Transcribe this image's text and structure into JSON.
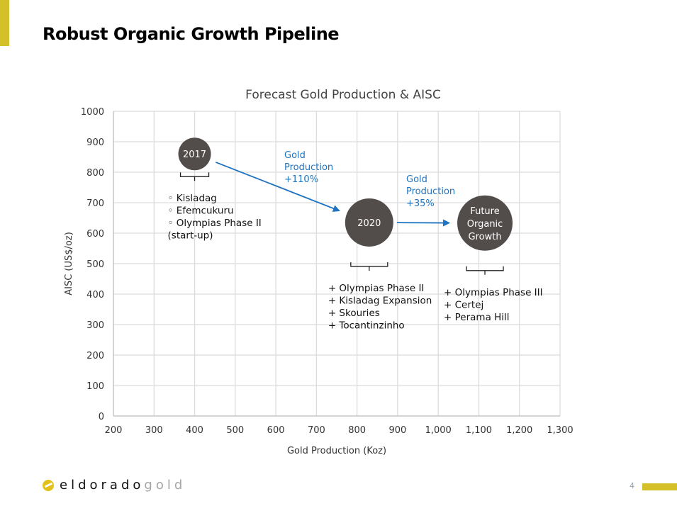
{
  "slide": {
    "title": "Robust Organic Growth Pipeline",
    "page_number": "4",
    "logo": {
      "dark": "eldorado",
      "light": "gold",
      "icon": "eldorado-logo-icon"
    },
    "accent_color": "#d4c12a"
  },
  "chart_data": {
    "type": "scatter",
    "title": "Forecast Gold Production & AISC",
    "xlabel": "Gold Production (Koz)",
    "ylabel": "AISC (US$/oz)",
    "xlim": [
      200,
      1300
    ],
    "ylim": [
      0,
      1000
    ],
    "x_ticks": [
      200,
      300,
      400,
      500,
      600,
      700,
      800,
      900,
      1000,
      1100,
      1200,
      1300
    ],
    "x_tick_labels": [
      "200",
      "300",
      "400",
      "500",
      "600",
      "700",
      "800",
      "900",
      "1,000",
      "1,100",
      "1,200",
      "1,300"
    ],
    "y_ticks": [
      0,
      100,
      200,
      300,
      400,
      500,
      600,
      700,
      800,
      900,
      1000
    ],
    "y_tick_labels": [
      "0",
      "100",
      "200",
      "300",
      "400",
      "500",
      "600",
      "700",
      "800",
      "900",
      "1000"
    ],
    "grid": true,
    "bubble_color": "#524d4a",
    "arrow_color": "#1f73c0",
    "points": [
      {
        "label": [
          "2017"
        ],
        "x": 400,
        "y": 860,
        "size": "small",
        "assets": [
          "◦ Kisladag",
          "◦ Efemcukuru",
          "◦ Olympias Phase II",
          "   (start-up)"
        ]
      },
      {
        "label": [
          "2020"
        ],
        "x": 830,
        "y": 635,
        "size": "medium",
        "assets": [
          "+ Olympias Phase II",
          "+ Kisladag Expansion",
          "+ Skouries",
          "+ Tocantinzinho"
        ]
      },
      {
        "label": [
          "Future",
          "Organic",
          "Growth"
        ],
        "x": 1115,
        "y": 633,
        "size": "large",
        "assets": [
          "+ Olympias Phase III",
          "+ Certej",
          "+ Perama Hill"
        ]
      }
    ],
    "annotations": [
      {
        "text": [
          "Gold",
          "Production",
          "+110%"
        ],
        "from": "2017",
        "to": "2020"
      },
      {
        "text": [
          "Gold",
          "Production",
          "+35%"
        ],
        "from": "2020",
        "to": "Future"
      }
    ]
  }
}
